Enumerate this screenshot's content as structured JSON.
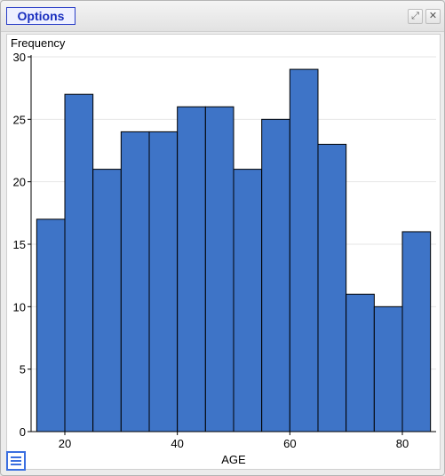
{
  "window": {
    "options_label": "Options",
    "maximize_icon": "expand-icon",
    "close_icon": "close-icon",
    "menu_icon": "hamburger-menu-icon"
  },
  "chart_data": {
    "type": "bar",
    "title": "",
    "xlabel": "AGE",
    "ylabel": "Frequency",
    "bin_edges": [
      15,
      20,
      25,
      30,
      35,
      40,
      45,
      50,
      55,
      60,
      65,
      70,
      75,
      80,
      85
    ],
    "values": [
      17,
      27,
      21,
      24,
      24,
      26,
      26,
      21,
      25,
      29,
      23,
      11,
      10,
      16
    ],
    "xlim": [
      14,
      86
    ],
    "ylim": [
      0,
      30
    ],
    "x_ticks": [
      20,
      40,
      60,
      80
    ],
    "y_ticks": [
      0,
      5,
      10,
      15,
      20,
      25,
      30
    ],
    "grid": true,
    "bar_color": "#3e74c7",
    "bar_edge_color": "#000000",
    "grid_color": "#e6e6e6"
  }
}
